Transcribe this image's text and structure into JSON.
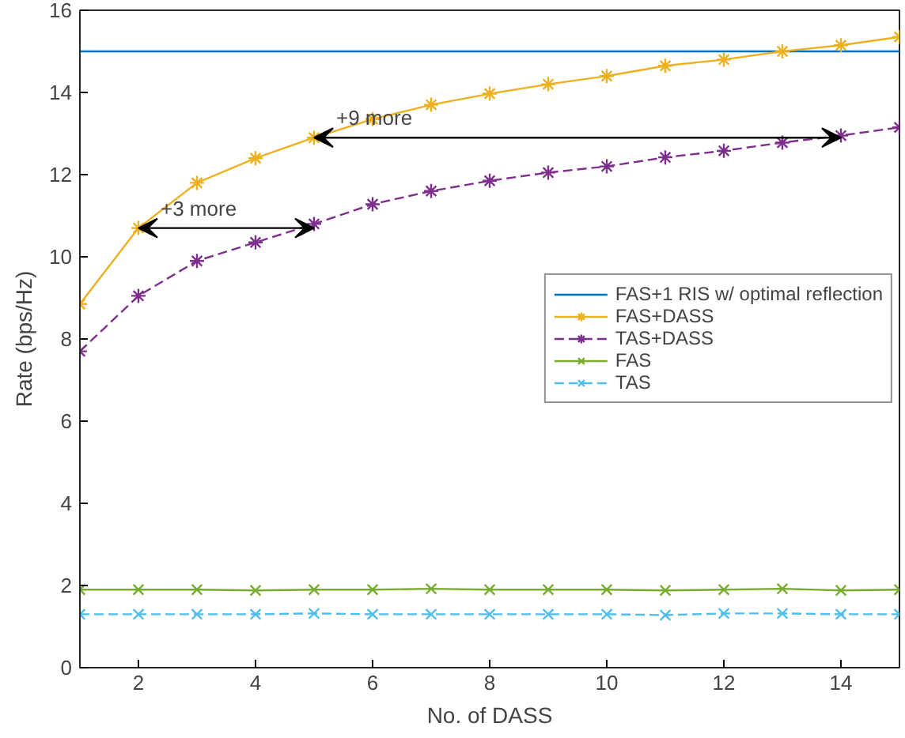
{
  "chart_data": {
    "type": "line",
    "xlabel": "No. of DASS",
    "ylabel": "Rate (bps/Hz)",
    "x": [
      1,
      2,
      3,
      4,
      5,
      6,
      7,
      8,
      9,
      10,
      11,
      12,
      13,
      14,
      15
    ],
    "xlim": [
      1,
      15
    ],
    "xticks": [
      2,
      4,
      6,
      8,
      10,
      12,
      14
    ],
    "ylim": [
      0,
      16
    ],
    "yticks": [
      0,
      2,
      4,
      6,
      8,
      10,
      12,
      14,
      16
    ],
    "grid": false,
    "legend": "right",
    "series": [
      {
        "name": "FAS+1 RIS w/ optimal reflection",
        "color": "#0072bd",
        "marker": "none",
        "line_style": "solid",
        "values": [
          15,
          15,
          15,
          15,
          15,
          15,
          15,
          15,
          15,
          15,
          15,
          15,
          15,
          15,
          15
        ]
      },
      {
        "name": "FAS+DASS",
        "color": "#edb120",
        "marker": "cross",
        "line_style": "solid",
        "values": [
          8.85,
          10.7,
          11.8,
          12.4,
          12.9,
          13.35,
          13.7,
          13.97,
          14.2,
          14.4,
          14.65,
          14.8,
          15.0,
          15.15,
          15.35
        ]
      },
      {
        "name": "TAS+DASS",
        "color": "#7e2f8e",
        "marker": "cross",
        "line_style": "dashed",
        "values": [
          7.7,
          9.05,
          9.9,
          10.35,
          10.8,
          11.28,
          11.6,
          11.85,
          12.05,
          12.2,
          12.42,
          12.58,
          12.78,
          12.95,
          13.15
        ]
      },
      {
        "name": "FAS",
        "color": "#77ac30",
        "marker": "cross",
        "line_style": "solid",
        "values": [
          1.9,
          1.9,
          1.9,
          1.88,
          1.9,
          1.9,
          1.92,
          1.9,
          1.9,
          1.9,
          1.88,
          1.9,
          1.92,
          1.88,
          1.9
        ]
      },
      {
        "name": "TAS",
        "color": "#4dbeee",
        "marker": "cross",
        "line_style": "dashed",
        "values": [
          1.3,
          1.3,
          1.3,
          1.3,
          1.32,
          1.3,
          1.3,
          1.3,
          1.3,
          1.3,
          1.28,
          1.32,
          1.32,
          1.3,
          1.3
        ]
      }
    ],
    "annotations": [
      {
        "text": "+3 more",
        "x": 2,
        "y": 10.7
      },
      {
        "text": "+9 more",
        "x": 5,
        "y": 12.9
      }
    ]
  }
}
